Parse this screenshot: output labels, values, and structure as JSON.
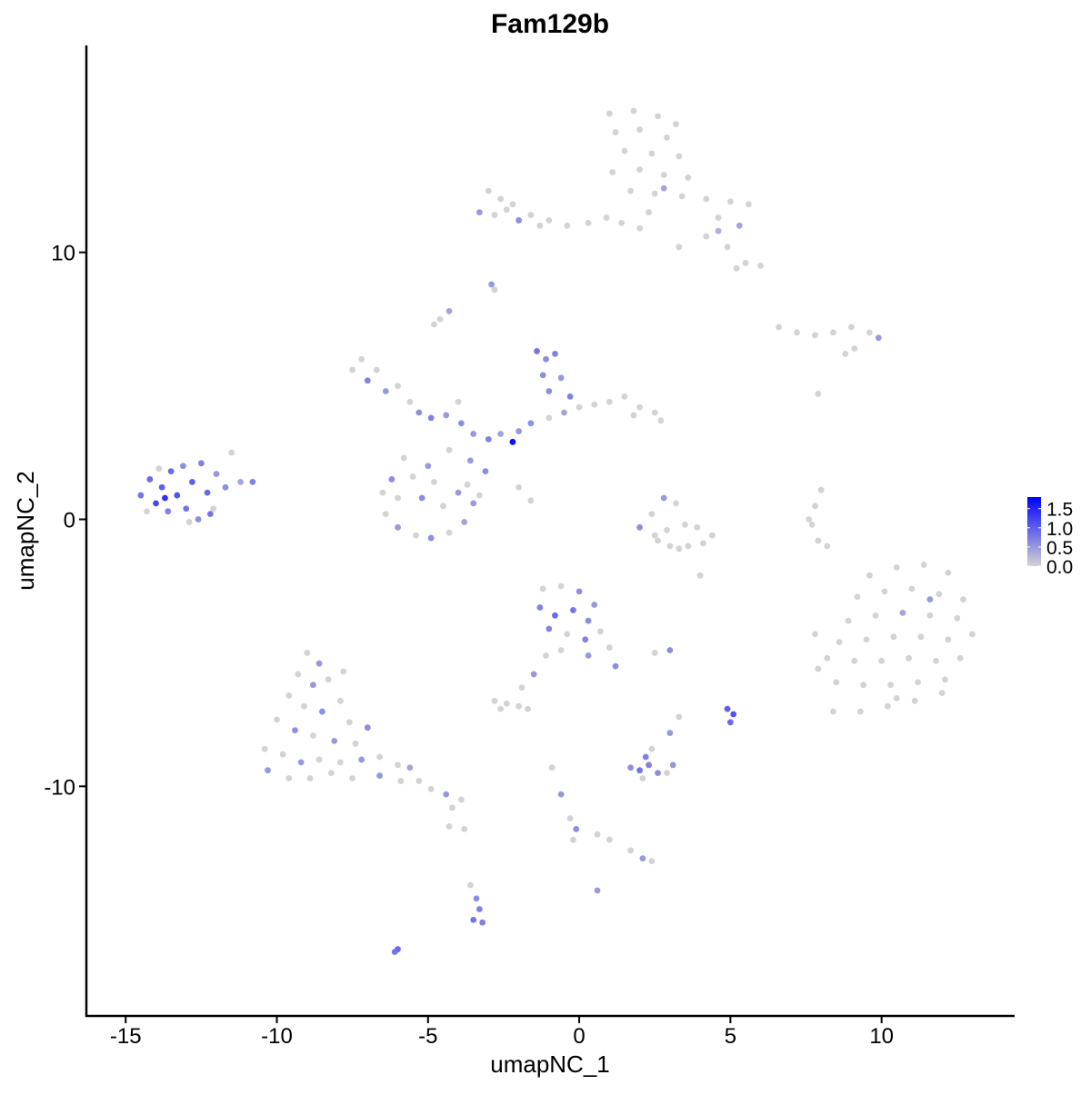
{
  "chart_data": {
    "type": "scatter",
    "title": "Fam129b",
    "xlabel": "umapNC_1",
    "ylabel": "umapNC_2",
    "xlim": [
      -16.3,
      14.4
    ],
    "ylim": [
      -18.6,
      17.75
    ],
    "x_ticks": [
      -15,
      -10,
      -5,
      0,
      5,
      10
    ],
    "x_tick_labels": [
      "-15",
      "-10",
      "-5",
      "0",
      "5",
      "10"
    ],
    "y_ticks": [
      -10,
      0,
      10
    ],
    "y_tick_labels": [
      "-10",
      "0",
      "10"
    ],
    "grid": false,
    "legend": {
      "placement": "right",
      "type": "colorbar",
      "range": [
        0,
        1.8
      ],
      "ticks": [
        0.0,
        0.5,
        1.0,
        1.5
      ],
      "tick_labels": [
        "0.0",
        "0.5",
        "1.0",
        "1.5"
      ]
    },
    "colors": {
      "low": "#D3D3D3",
      "high": "#0000FF"
    },
    "point_format": [
      "x",
      "y",
      "expression"
    ],
    "points": [
      [
        1.0,
        15.2,
        0
      ],
      [
        1.8,
        15.3,
        0
      ],
      [
        2.6,
        15.1,
        0
      ],
      [
        3.2,
        14.8,
        0
      ],
      [
        1.2,
        14.5,
        0
      ],
      [
        2.0,
        14.6,
        0
      ],
      [
        2.9,
        14.3,
        0
      ],
      [
        1.5,
        13.8,
        0
      ],
      [
        2.4,
        13.7,
        0
      ],
      [
        3.3,
        13.6,
        0
      ],
      [
        1.1,
        13.0,
        0
      ],
      [
        2.0,
        13.1,
        0
      ],
      [
        2.8,
        12.9,
        0
      ],
      [
        3.6,
        12.8,
        0
      ],
      [
        1.7,
        12.3,
        0
      ],
      [
        2.5,
        12.2,
        0
      ],
      [
        3.4,
        12.1,
        0
      ],
      [
        4.2,
        12.0,
        0
      ],
      [
        5.0,
        11.9,
        0
      ],
      [
        5.6,
        11.8,
        0
      ],
      [
        4.6,
        11.3,
        0
      ],
      [
        5.3,
        11.0,
        0.4
      ],
      [
        2.3,
        11.5,
        0
      ],
      [
        2.0,
        10.9,
        0
      ],
      [
        1.4,
        11.1,
        0
      ],
      [
        0.9,
        11.3,
        0
      ],
      [
        4.2,
        10.6,
        0
      ],
      [
        4.9,
        10.2,
        0
      ],
      [
        5.5,
        9.6,
        0
      ],
      [
        6.0,
        9.5,
        0
      ],
      [
        5.2,
        9.4,
        0
      ],
      [
        3.3,
        10.2,
        0
      ],
      [
        4.6,
        10.8,
        0.3
      ],
      [
        2.8,
        12.4,
        0.4
      ],
      [
        -3.0,
        12.3,
        0
      ],
      [
        -2.6,
        12.0,
        0
      ],
      [
        -2.2,
        11.8,
        0
      ],
      [
        -1.6,
        11.4,
        0
      ],
      [
        -1.0,
        11.2,
        0
      ],
      [
        -0.4,
        11.0,
        0
      ],
      [
        -2.8,
        11.4,
        0
      ],
      [
        -3.3,
        11.5,
        0.5
      ],
      [
        -2.0,
        11.2,
        0.6
      ],
      [
        -2.4,
        11.6,
        0
      ],
      [
        0.3,
        11.1,
        0
      ],
      [
        -1.3,
        11.0,
        0
      ],
      [
        -4.6,
        7.5,
        0
      ],
      [
        -4.8,
        7.3,
        0
      ],
      [
        -4.3,
        7.8,
        0.4
      ],
      [
        -2.9,
        8.8,
        0.5
      ],
      [
        -2.8,
        8.6,
        0
      ],
      [
        6.6,
        7.2,
        0
      ],
      [
        7.2,
        7.0,
        0
      ],
      [
        7.8,
        6.9,
        0
      ],
      [
        8.4,
        7.0,
        0
      ],
      [
        9.0,
        7.2,
        0
      ],
      [
        9.6,
        7.0,
        0
      ],
      [
        9.9,
        6.8,
        0.5
      ],
      [
        8.8,
        6.2,
        0
      ],
      [
        9.1,
        6.4,
        0
      ],
      [
        -14.5,
        0.9,
        0.8
      ],
      [
        -14.2,
        1.5,
        0.9
      ],
      [
        -14.0,
        0.6,
        1.2
      ],
      [
        -13.8,
        1.2,
        1.0
      ],
      [
        -13.6,
        0.3,
        0.7
      ],
      [
        -13.5,
        1.8,
        0.9
      ],
      [
        -13.3,
        0.9,
        1.1
      ],
      [
        -13.1,
        2.0,
        0.6
      ],
      [
        -13.0,
        0.4,
        0.8
      ],
      [
        -12.8,
        1.4,
        1.0
      ],
      [
        -12.6,
        0.0,
        0.6
      ],
      [
        -12.5,
        2.1,
        0.7
      ],
      [
        -12.3,
        1.0,
        0.9
      ],
      [
        -12.1,
        0.4,
        0
      ],
      [
        -12.0,
        1.7,
        0.5
      ],
      [
        -11.7,
        1.2,
        0.6
      ],
      [
        -11.5,
        2.5,
        0
      ],
      [
        -11.2,
        1.4,
        0.4
      ],
      [
        -10.8,
        1.4,
        0.7
      ],
      [
        -14.3,
        0.3,
        0
      ],
      [
        -13.9,
        1.9,
        0
      ],
      [
        -12.9,
        -0.1,
        0
      ],
      [
        -13.7,
        0.8,
        1.4
      ],
      [
        -12.2,
        0.2,
        0.8
      ],
      [
        -7.5,
        5.6,
        0
      ],
      [
        -7.2,
        6.0,
        0
      ],
      [
        -7.0,
        5.2,
        0.7
      ],
      [
        -6.7,
        5.6,
        0
      ],
      [
        -6.4,
        4.8,
        0.5
      ],
      [
        -6.0,
        5.0,
        0
      ],
      [
        -5.6,
        4.4,
        0
      ],
      [
        -5.3,
        4.0,
        0.6
      ],
      [
        -4.9,
        3.8,
        0.7
      ],
      [
        -4.4,
        3.9,
        0.5
      ],
      [
        -3.9,
        3.6,
        0.6
      ],
      [
        -3.5,
        3.2,
        0.5
      ],
      [
        -3.0,
        3.0,
        0.7
      ],
      [
        -2.6,
        3.2,
        0.4
      ],
      [
        -2.2,
        2.9,
        1.7
      ],
      [
        -2.0,
        3.3,
        0.5
      ],
      [
        -1.6,
        3.6,
        0.6
      ],
      [
        -1.0,
        3.8,
        0
      ],
      [
        -0.5,
        4.0,
        0.4
      ],
      [
        0.0,
        4.2,
        0
      ],
      [
        0.5,
        4.3,
        0
      ],
      [
        1.0,
        4.4,
        0
      ],
      [
        1.5,
        4.6,
        0
      ],
      [
        2.0,
        4.2,
        0
      ],
      [
        2.5,
        4.0,
        0
      ],
      [
        2.7,
        3.7,
        0
      ],
      [
        1.8,
        3.9,
        0
      ],
      [
        -1.4,
        6.3,
        0.8
      ],
      [
        -1.1,
        6.0,
        0.6
      ],
      [
        -0.8,
        6.2,
        0.7
      ],
      [
        -1.2,
        5.4,
        0.6
      ],
      [
        -0.6,
        5.3,
        0.5
      ],
      [
        -1.0,
        4.8,
        0.6
      ],
      [
        -0.3,
        4.6,
        0.7
      ],
      [
        -4.0,
        4.4,
        0
      ],
      [
        -5.8,
        2.3,
        0
      ],
      [
        -4.3,
        2.6,
        0
      ],
      [
        -3.6,
        2.2,
        0.5
      ],
      [
        -3.1,
        1.8,
        0.6
      ],
      [
        -6.2,
        1.5,
        0.6
      ],
      [
        -6.5,
        1.0,
        0
      ],
      [
        -6.4,
        0.2,
        0
      ],
      [
        -6.0,
        -0.3,
        0.5
      ],
      [
        -5.4,
        -0.6,
        0
      ],
      [
        -4.9,
        -0.7,
        0.6
      ],
      [
        -4.3,
        -0.5,
        0
      ],
      [
        -3.8,
        -0.1,
        0.4
      ],
      [
        -3.5,
        0.6,
        0.5
      ],
      [
        -3.7,
        1.3,
        0
      ],
      [
        -4.5,
        0.5,
        0
      ],
      [
        -5.2,
        0.8,
        0.6
      ],
      [
        -5.5,
        1.6,
        0
      ],
      [
        -4.8,
        1.4,
        0
      ],
      [
        -6.0,
        0.8,
        0
      ],
      [
        -3.3,
        0.9,
        0
      ],
      [
        -4.0,
        1.0,
        0.5
      ],
      [
        -2.0,
        1.2,
        0
      ],
      [
        -1.6,
        0.7,
        0
      ],
      [
        -5.0,
        2.0,
        0.5
      ],
      [
        2.4,
        0.2,
        0
      ],
      [
        2.8,
        0.8,
        0.5
      ],
      [
        3.2,
        0.6,
        0
      ],
      [
        3.5,
        -0.2,
        0
      ],
      [
        2.9,
        -0.4,
        0
      ],
      [
        2.5,
        -0.6,
        0
      ],
      [
        3.0,
        -1.0,
        0
      ],
      [
        3.6,
        -1.0,
        0
      ],
      [
        4.1,
        -0.9,
        0
      ],
      [
        4.4,
        -0.6,
        0
      ],
      [
        2.0,
        -0.3,
        0.6
      ],
      [
        2.6,
        -0.8,
        0
      ],
      [
        3.3,
        -1.1,
        0
      ],
      [
        3.9,
        -0.3,
        0
      ],
      [
        4.0,
        -2.1,
        0
      ],
      [
        8.0,
        1.1,
        0
      ],
      [
        7.8,
        0.5,
        0
      ],
      [
        7.7,
        -0.2,
        0
      ],
      [
        7.9,
        -0.8,
        0
      ],
      [
        8.2,
        -1.0,
        0
      ],
      [
        7.6,
        0.0,
        0
      ],
      [
        7.9,
        4.7,
        0
      ],
      [
        9.6,
        -2.1,
        0
      ],
      [
        10.5,
        -1.8,
        0
      ],
      [
        11.4,
        -1.7,
        0
      ],
      [
        12.2,
        -2.0,
        0
      ],
      [
        9.2,
        -2.9,
        0
      ],
      [
        10.1,
        -2.7,
        0
      ],
      [
        11.0,
        -2.6,
        0
      ],
      [
        11.9,
        -2.8,
        0
      ],
      [
        12.7,
        -3.0,
        0
      ],
      [
        8.9,
        -3.8,
        0
      ],
      [
        9.8,
        -3.6,
        0
      ],
      [
        10.7,
        -3.5,
        0.4
      ],
      [
        11.6,
        -3.6,
        0
      ],
      [
        12.5,
        -3.7,
        0
      ],
      [
        8.6,
        -4.6,
        0
      ],
      [
        9.5,
        -4.5,
        0
      ],
      [
        10.4,
        -4.4,
        0
      ],
      [
        11.3,
        -4.4,
        0
      ],
      [
        12.2,
        -4.5,
        0
      ],
      [
        13.0,
        -4.3,
        0
      ],
      [
        8.2,
        -5.2,
        0
      ],
      [
        9.1,
        -5.3,
        0
      ],
      [
        10.0,
        -5.3,
        0
      ],
      [
        10.9,
        -5.2,
        0
      ],
      [
        11.8,
        -5.3,
        0
      ],
      [
        12.6,
        -5.2,
        0
      ],
      [
        8.5,
        -6.1,
        0
      ],
      [
        9.4,
        -6.2,
        0
      ],
      [
        10.3,
        -6.2,
        0
      ],
      [
        11.2,
        -6.1,
        0
      ],
      [
        12.1,
        -6.0,
        0
      ],
      [
        8.4,
        -7.2,
        0
      ],
      [
        9.3,
        -7.2,
        0
      ],
      [
        10.2,
        -7.0,
        0
      ],
      [
        11.1,
        -6.8,
        0
      ],
      [
        12.0,
        -6.5,
        0
      ],
      [
        7.8,
        -4.3,
        0
      ],
      [
        7.9,
        -5.6,
        0
      ],
      [
        11.6,
        -3.0,
        0.5
      ],
      [
        10.5,
        -6.7,
        0
      ],
      [
        -1.2,
        -2.6,
        0
      ],
      [
        -0.6,
        -2.5,
        0
      ],
      [
        0.0,
        -2.7,
        0.6
      ],
      [
        0.5,
        -3.2,
        0.5
      ],
      [
        -1.3,
        -3.3,
        0.7
      ],
      [
        -0.8,
        -3.6,
        0.9
      ],
      [
        -0.2,
        -3.4,
        0.8
      ],
      [
        0.3,
        -3.8,
        0.6
      ],
      [
        -1.0,
        -4.1,
        0.7
      ],
      [
        -0.4,
        -4.3,
        0
      ],
      [
        0.2,
        -4.5,
        0.7
      ],
      [
        0.7,
        -4.2,
        0
      ],
      [
        1.0,
        -4.8,
        0
      ],
      [
        1.2,
        -5.5,
        0.6
      ],
      [
        -0.6,
        -4.9,
        0
      ],
      [
        0.3,
        -5.1,
        0.5
      ],
      [
        -1.1,
        -5.1,
        0
      ],
      [
        -1.5,
        -5.8,
        0.5
      ],
      [
        -1.9,
        -6.3,
        0
      ],
      [
        2.5,
        -5.0,
        0
      ],
      [
        3.0,
        -4.9,
        0.6
      ],
      [
        -2.8,
        -6.8,
        0
      ],
      [
        -2.4,
        -6.9,
        0
      ],
      [
        -2.0,
        -7.0,
        0
      ],
      [
        -1.7,
        -7.1,
        0
      ],
      [
        -2.6,
        -7.1,
        0
      ],
      [
        4.9,
        -7.1,
        1.0
      ],
      [
        5.1,
        -7.3,
        1.1
      ],
      [
        5.0,
        -7.6,
        0.9
      ],
      [
        3.3,
        -7.4,
        0
      ],
      [
        3.0,
        -8.0,
        0.5
      ],
      [
        1.7,
        -9.3,
        0.6
      ],
      [
        2.0,
        -9.4,
        0.8
      ],
      [
        2.3,
        -9.2,
        0.7
      ],
      [
        2.6,
        -9.5,
        0.6
      ],
      [
        2.1,
        -9.7,
        0
      ],
      [
        2.4,
        -8.6,
        0
      ],
      [
        2.9,
        -9.5,
        0
      ],
      [
        3.1,
        -9.2,
        0.5
      ],
      [
        2.2,
        -8.9,
        0.7
      ],
      [
        -9.0,
        -5.0,
        0
      ],
      [
        -8.6,
        -5.4,
        0.5
      ],
      [
        -9.3,
        -5.8,
        0
      ],
      [
        -8.8,
        -6.2,
        0.5
      ],
      [
        -8.3,
        -6.0,
        0
      ],
      [
        -9.6,
        -6.6,
        0
      ],
      [
        -9.1,
        -7.0,
        0
      ],
      [
        -8.5,
        -7.2,
        0.6
      ],
      [
        -7.9,
        -6.8,
        0
      ],
      [
        -7.6,
        -7.6,
        0
      ],
      [
        -10.0,
        -7.5,
        0
      ],
      [
        -9.4,
        -7.9,
        0.6
      ],
      [
        -8.8,
        -8.1,
        0
      ],
      [
        -8.1,
        -8.3,
        0.5
      ],
      [
        -7.4,
        -8.4,
        0
      ],
      [
        -10.4,
        -8.6,
        0
      ],
      [
        -9.8,
        -8.8,
        0
      ],
      [
        -9.2,
        -9.1,
        0.5
      ],
      [
        -8.6,
        -9.0,
        0
      ],
      [
        -7.9,
        -9.1,
        0
      ],
      [
        -7.2,
        -9.0,
        0.5
      ],
      [
        -6.6,
        -8.9,
        0
      ],
      [
        -6.0,
        -9.2,
        0
      ],
      [
        -10.3,
        -9.4,
        0.5
      ],
      [
        -9.6,
        -9.7,
        0
      ],
      [
        -8.9,
        -9.7,
        0
      ],
      [
        -8.2,
        -9.5,
        0
      ],
      [
        -7.5,
        -9.7,
        0
      ],
      [
        -6.6,
        -9.6,
        0.5
      ],
      [
        -5.9,
        -9.8,
        0
      ],
      [
        -5.3,
        -9.8,
        0
      ],
      [
        -4.9,
        -10.1,
        0
      ],
      [
        -4.4,
        -10.3,
        0.5
      ],
      [
        -3.9,
        -10.5,
        0
      ],
      [
        -4.2,
        -10.8,
        0
      ],
      [
        -7.0,
        -7.8,
        0.6
      ],
      [
        -7.8,
        -5.7,
        0
      ],
      [
        -5.6,
        -9.3,
        0.4
      ],
      [
        -0.9,
        -9.3,
        0
      ],
      [
        -0.6,
        -10.3,
        0.5
      ],
      [
        -0.3,
        -11.2,
        0
      ],
      [
        -0.1,
        -11.6,
        0.6
      ],
      [
        -0.2,
        -12.0,
        0
      ],
      [
        0.6,
        -11.8,
        0
      ],
      [
        1.0,
        -12.0,
        0
      ],
      [
        1.7,
        -12.4,
        0
      ],
      [
        2.1,
        -12.7,
        0.5
      ],
      [
        2.4,
        -12.8,
        0
      ],
      [
        0.6,
        -13.9,
        0.5
      ],
      [
        -4.3,
        -11.5,
        0
      ],
      [
        -3.8,
        -11.6,
        0
      ],
      [
        -3.6,
        -13.7,
        0
      ],
      [
        -3.4,
        -14.2,
        0.6
      ],
      [
        -3.3,
        -14.6,
        0.7
      ],
      [
        -3.5,
        -15.0,
        0.8
      ],
      [
        -3.2,
        -15.1,
        0.7
      ],
      [
        -6.0,
        -16.1,
        0.9
      ],
      [
        -6.1,
        -16.2,
        0.8
      ]
    ]
  }
}
